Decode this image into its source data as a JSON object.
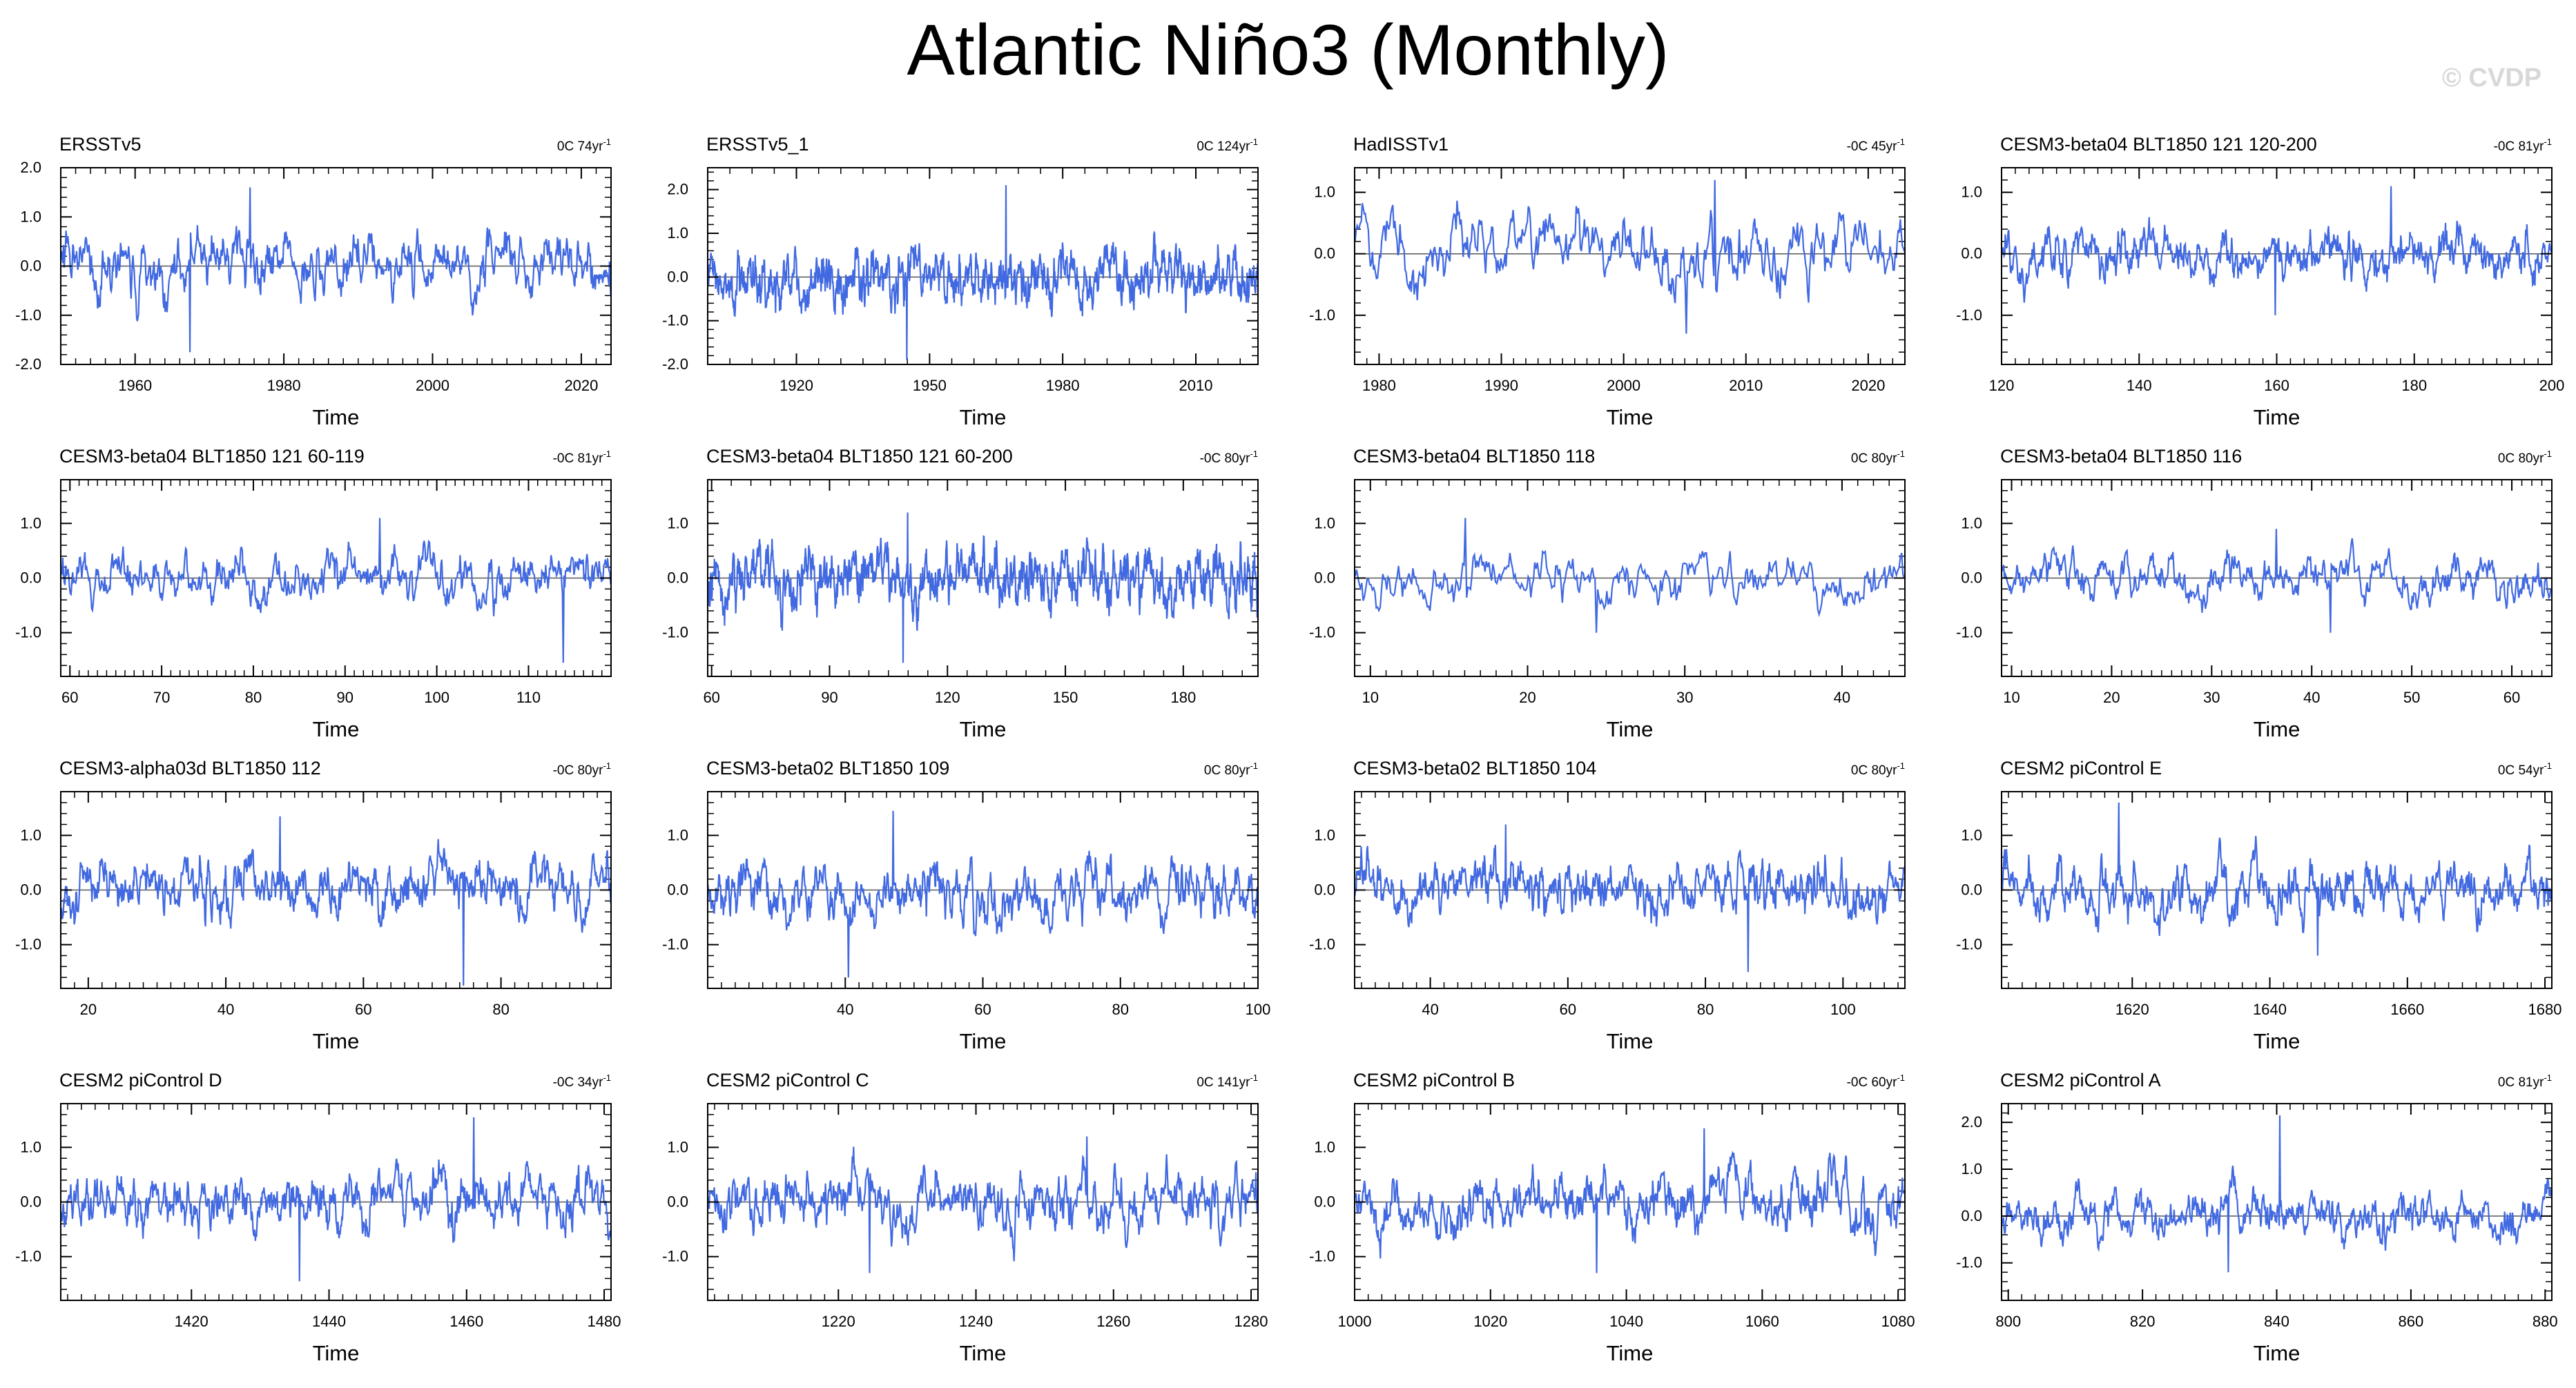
{
  "title": "Atlantic Niño3 (Monthly)",
  "watermark": "© CVDP",
  "colors": {
    "series": "#4169e1",
    "zero_line": "#555555",
    "axis": "#000000"
  },
  "chart_data": [
    {
      "type": "line",
      "title": "ERSSTv5",
      "trend": "0C 74yr",
      "trend_unit": "-1",
      "xlabel": "Time",
      "xlim": [
        1950,
        2024
      ],
      "ylim": [
        -2.0,
        2.0
      ],
      "xticks": [
        1960,
        1980,
        2000,
        2020
      ],
      "yticks": [
        -2.0,
        -1.0,
        0.0,
        1.0,
        2.0
      ],
      "ytick_labels": [
        "-2.0",
        "-1.0",
        "0.0",
        "1.0",
        "2.0"
      ],
      "amp": 0.5,
      "max": 1.6,
      "min": -1.75,
      "seed": 1
    },
    {
      "type": "line",
      "title": "ERSSTv5_1",
      "trend": "0C 124yr",
      "trend_unit": "-1",
      "xlabel": "Time",
      "xlim": [
        1900,
        2024
      ],
      "ylim": [
        -2.0,
        2.5
      ],
      "xticks": [
        1920,
        1950,
        1980,
        2010
      ],
      "yticks": [
        -2.0,
        -1.0,
        0.0,
        1.0,
        2.0
      ],
      "ytick_labels": [
        "-2.0",
        "-1.0",
        "0.0",
        "1.0",
        "2.0"
      ],
      "amp": 0.55,
      "max": 2.1,
      "min": -1.9,
      "seed": 2
    },
    {
      "type": "line",
      "title": "HadISSTv1",
      "trend": "-0C 45yr",
      "trend_unit": "-1",
      "xlabel": "Time",
      "xlim": [
        1978,
        2023
      ],
      "ylim": [
        -1.8,
        1.4
      ],
      "xticks": [
        1980,
        1990,
        2000,
        2010,
        2020
      ],
      "yticks": [
        -1.0,
        0.0,
        1.0
      ],
      "ytick_labels": [
        "-1.0",
        "0.0",
        "1.0"
      ],
      "amp": 0.5,
      "max": 1.2,
      "min": -1.3,
      "seed": 3
    },
    {
      "type": "line",
      "title": "CESM3-beta04 BLT1850 121 120-200",
      "trend": "-0C 81yr",
      "trend_unit": "-1",
      "xlabel": "Time",
      "xlim": [
        120,
        200
      ],
      "ylim": [
        -1.8,
        1.4
      ],
      "xticks": [
        120,
        140,
        160,
        180,
        200
      ],
      "yticks": [
        -1.0,
        0.0,
        1.0
      ],
      "ytick_labels": [
        "-1.0",
        "0.0",
        "1.0"
      ],
      "amp": 0.35,
      "max": 1.1,
      "min": -1.0,
      "seed": 4
    },
    {
      "type": "line",
      "title": "CESM3-beta04 BLT1850 121 60-119",
      "trend": "-0C 81yr",
      "trend_unit": "-1",
      "xlabel": "Time",
      "xlim": [
        59,
        119
      ],
      "ylim": [
        -1.8,
        1.8
      ],
      "xticks": [
        60,
        70,
        80,
        90,
        100,
        110
      ],
      "yticks": [
        -1.0,
        0.0,
        1.0
      ],
      "ytick_labels": [
        "-1.0",
        "0.0",
        "1.0"
      ],
      "amp": 0.4,
      "max": 1.1,
      "min": -1.55,
      "seed": 5
    },
    {
      "type": "line",
      "title": "CESM3-beta04 BLT1850 121 60-200",
      "trend": "-0C 80yr",
      "trend_unit": "-1",
      "xlabel": "Time",
      "xlim": [
        59,
        199
      ],
      "ylim": [
        -1.8,
        1.8
      ],
      "xticks": [
        60,
        90,
        120,
        150,
        180
      ],
      "yticks": [
        -1.0,
        0.0,
        1.0
      ],
      "ytick_labels": [
        "-1.0",
        "0.0",
        "1.0"
      ],
      "amp": 0.45,
      "max": 1.2,
      "min": -1.55,
      "seed": 6
    },
    {
      "type": "line",
      "title": "CESM3-beta04 BLT1850 118",
      "trend": "0C 80yr",
      "trend_unit": "-1",
      "xlabel": "Time",
      "xlim": [
        9,
        44
      ],
      "ylim": [
        -1.8,
        1.8
      ],
      "xticks": [
        10,
        20,
        30,
        40
      ],
      "yticks": [
        -1.0,
        0.0,
        1.0
      ],
      "ytick_labels": [
        "-1.0",
        "0.0",
        "1.0"
      ],
      "amp": 0.4,
      "max": 1.1,
      "min": -1.0,
      "seed": 7
    },
    {
      "type": "line",
      "title": "CESM3-beta04 BLT1850 116",
      "trend": "0C 80yr",
      "trend_unit": "-1",
      "xlabel": "Time",
      "xlim": [
        9,
        64
      ],
      "ylim": [
        -1.8,
        1.8
      ],
      "xticks": [
        10,
        20,
        30,
        40,
        50,
        60
      ],
      "yticks": [
        -1.0,
        0.0,
        1.0
      ],
      "ytick_labels": [
        "-1.0",
        "0.0",
        "1.0"
      ],
      "amp": 0.35,
      "max": 0.9,
      "min": -1.0,
      "seed": 8
    },
    {
      "type": "line",
      "title": "CESM3-alpha03d BLT1850 112",
      "trend": "-0C 80yr",
      "trend_unit": "-1",
      "xlabel": "Time",
      "xlim": [
        16,
        96
      ],
      "ylim": [
        -1.8,
        1.8
      ],
      "xticks": [
        20,
        40,
        60,
        80
      ],
      "yticks": [
        -1.0,
        0.0,
        1.0
      ],
      "ytick_labels": [
        "-1.0",
        "0.0",
        "1.0"
      ],
      "amp": 0.45,
      "max": 1.35,
      "min": -1.75,
      "seed": 9
    },
    {
      "type": "line",
      "title": "CESM3-beta02 BLT1850 109",
      "trend": "0C 80yr",
      "trend_unit": "-1",
      "xlabel": "Time",
      "xlim": [
        20,
        100
      ],
      "ylim": [
        -1.8,
        1.8
      ],
      "xticks": [
        40,
        60,
        80,
        100
      ],
      "yticks": [
        -1.0,
        0.0,
        1.0
      ],
      "ytick_labels": [
        "-1.0",
        "0.0",
        "1.0"
      ],
      "amp": 0.45,
      "max": 1.45,
      "min": -1.6,
      "seed": 10
    },
    {
      "type": "line",
      "title": "CESM3-beta02 BLT1850 104",
      "trend": "0C 80yr",
      "trend_unit": "-1",
      "xlabel": "Time",
      "xlim": [
        29,
        109
      ],
      "ylim": [
        -1.8,
        1.8
      ],
      "xticks": [
        40,
        60,
        80,
        100
      ],
      "yticks": [
        -1.0,
        0.0,
        1.0
      ],
      "ytick_labels": [
        "-1.0",
        "0.0",
        "1.0"
      ],
      "amp": 0.45,
      "max": 1.2,
      "min": -1.5,
      "seed": 11
    },
    {
      "type": "line",
      "title": "CESM2 piControl E",
      "trend": "0C 54yr",
      "trend_unit": "-1",
      "xlabel": "Time",
      "xlim": [
        1601,
        1681
      ],
      "ylim": [
        -1.8,
        1.8
      ],
      "xticks": [
        1620,
        1640,
        1660,
        1680
      ],
      "yticks": [
        -1.0,
        0.0,
        1.0
      ],
      "ytick_labels": [
        "-1.0",
        "0.0",
        "1.0"
      ],
      "amp": 0.45,
      "max": 1.6,
      "min": -1.2,
      "seed": 12
    },
    {
      "type": "line",
      "title": "CESM2 piControl D",
      "trend": "-0C 34yr",
      "trend_unit": "-1",
      "xlabel": "Time",
      "xlim": [
        1401,
        1481
      ],
      "ylim": [
        -1.8,
        1.8
      ],
      "xticks": [
        1420,
        1440,
        1460,
        1480
      ],
      "yticks": [
        -1.0,
        0.0,
        1.0
      ],
      "ytick_labels": [
        "-1.0",
        "0.0",
        "1.0"
      ],
      "amp": 0.45,
      "max": 1.55,
      "min": -1.45,
      "seed": 13
    },
    {
      "type": "line",
      "title": "CESM2 piControl C",
      "trend": "0C 141yr",
      "trend_unit": "-1",
      "xlabel": "Time",
      "xlim": [
        1201,
        1281
      ],
      "ylim": [
        -1.8,
        1.8
      ],
      "xticks": [
        1220,
        1240,
        1260,
        1280
      ],
      "yticks": [
        -1.0,
        0.0,
        1.0
      ],
      "ytick_labels": [
        "-1.0",
        "0.0",
        "1.0"
      ],
      "amp": 0.45,
      "max": 1.2,
      "min": -1.3,
      "seed": 14
    },
    {
      "type": "line",
      "title": "CESM2 piControl B",
      "trend": "-0C 60yr",
      "trend_unit": "-1",
      "xlabel": "Time",
      "xlim": [
        1000,
        1081
      ],
      "ylim": [
        -1.8,
        1.8
      ],
      "xticks": [
        1000,
        1020,
        1040,
        1060,
        1080
      ],
      "yticks": [
        -1.0,
        0.0,
        1.0
      ],
      "ytick_labels": [
        "-1.0",
        "0.0",
        "1.0"
      ],
      "amp": 0.45,
      "max": 1.35,
      "min": -1.3,
      "seed": 15
    },
    {
      "type": "line",
      "title": "CESM2 piControl A",
      "trend": "0C 81yr",
      "trend_unit": "-1",
      "xlabel": "Time",
      "xlim": [
        799,
        881
      ],
      "ylim": [
        -1.8,
        2.4
      ],
      "xticks": [
        800,
        820,
        840,
        860,
        880
      ],
      "yticks": [
        -1.0,
        0.0,
        1.0,
        2.0
      ],
      "ytick_labels": [
        "-1.0",
        "0.0",
        "1.0",
        "2.0"
      ],
      "amp": 0.4,
      "max": 2.15,
      "min": -1.2,
      "seed": 16
    }
  ]
}
